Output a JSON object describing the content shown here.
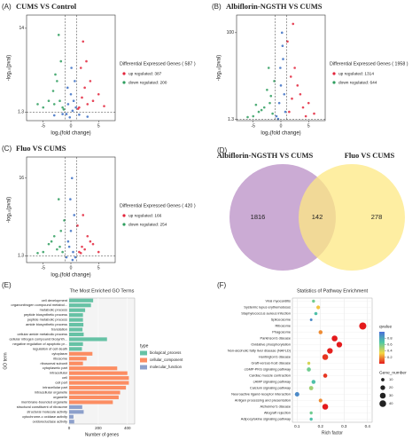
{
  "chart_data": [
    {
      "type": "volcano",
      "panel": "(A)",
      "title": "CUMS VS Control",
      "xlabel": "log₂(fold change)",
      "ylabel": "-log₁₀(pval)",
      "xlim": [
        -8,
        8
      ],
      "xticks": [
        -5,
        0,
        5
      ],
      "ylim": [
        0,
        16
      ],
      "yticks": [
        1.3,
        14
      ],
      "vlines": [
        -1,
        1
      ],
      "hline": 1.3,
      "legend_title": "Differential Expressed Genes ( 587 )",
      "series": [
        {
          "name": "up regulated: 387",
          "color": "#e3243b",
          "x": [
            1.5,
            2,
            2.5,
            3,
            1.8,
            4,
            3.5,
            2.2,
            5,
            1.3,
            2.8,
            6
          ],
          "y": [
            2,
            3.5,
            5,
            2.5,
            8,
            3,
            6,
            12,
            4,
            1.8,
            9,
            2.2
          ]
        },
        {
          "name": "down regulated: 200",
          "color": "#2e9e5e",
          "x": [
            -1.5,
            -2,
            -2.5,
            -3,
            -1.8,
            -4,
            -3.2,
            -2.2,
            -5,
            -1.3,
            -6,
            -2.8
          ],
          "y": [
            2,
            3,
            6,
            2.5,
            9,
            3,
            4.5,
            13,
            2,
            1.7,
            2.5,
            7
          ]
        },
        {
          "color": "#3b6fc4",
          "x": [
            -0.8,
            -0.5,
            0,
            0.3,
            0.7,
            -0.2,
            0.5,
            -3,
            3,
            -1.5,
            1.5,
            0.1,
            -0.6,
            0.9
          ],
          "y": [
            1,
            2.5,
            4,
            1.5,
            6,
            0.5,
            3,
            0.8,
            0.6,
            1,
            0.9,
            8,
            5,
            2
          ]
        }
      ]
    },
    {
      "type": "volcano",
      "panel": "(B)",
      "title": "Albiflorin-NGSTH VS CUMS",
      "xlabel": "log₂(fold change)",
      "ylabel": "-log₁₀(pval)",
      "xlim": [
        -8,
        8
      ],
      "xticks": [
        -5,
        0,
        5
      ],
      "ylim": [
        0,
        120
      ],
      "yticks": [
        1.3,
        100
      ],
      "vlines": [
        -1,
        1
      ],
      "hline": 1.3,
      "legend_title": "Differential Expressed Genes ( 1958 )",
      "series": [
        {
          "name": "up regulated: 1314",
          "color": "#e3243b",
          "x": [
            1.5,
            2,
            3,
            2.5,
            4,
            1.2,
            5,
            3.5,
            2.2,
            6,
            1.8,
            4.5
          ],
          "y": [
            10,
            25,
            40,
            60,
            15,
            90,
            20,
            30,
            110,
            8,
            50,
            5
          ]
        },
        {
          "name": "down regulated: 644",
          "color": "#2e9e5e",
          "x": [
            -1.5,
            -2,
            -3,
            -2.5,
            -4,
            -1.2,
            -5,
            -3.5,
            -6,
            -1.8,
            -2.2,
            -4.5
          ],
          "y": [
            8,
            20,
            15,
            35,
            10,
            45,
            5,
            12,
            4,
            28,
            60,
            18
          ]
        },
        {
          "color": "#3b6fc4",
          "x": [
            -0.8,
            -0.3,
            0,
            0.4,
            0.8,
            -0.5,
            0.2,
            0.6,
            -0.1,
            0.3
          ],
          "y": [
            5,
            20,
            40,
            70,
            10,
            2,
            100,
            30,
            60,
            85
          ]
        }
      ]
    },
    {
      "type": "volcano",
      "panel": "(C)",
      "title": "Fluo VS CUMS",
      "xlabel": "log₂(fold change)",
      "ylabel": "-log₁₀(pval)",
      "xlim": [
        -8,
        8
      ],
      "xticks": [
        -5,
        0,
        5
      ],
      "ylim": [
        0,
        20
      ],
      "yticks": [
        1.3,
        16
      ],
      "vlines": [
        -1,
        1
      ],
      "hline": 1.3,
      "legend_title": "Differential Expressed Genes ( 420 )",
      "series": [
        {
          "name": "up regulated: 166",
          "color": "#e3243b",
          "x": [
            1.5,
            2,
            3,
            2.5,
            4,
            1.2,
            5,
            3.5,
            2.2,
            1.8
          ],
          "y": [
            2,
            3,
            5,
            2.5,
            3.5,
            7,
            2,
            4,
            9,
            1.8
          ]
        },
        {
          "name": "down regulated: 254",
          "color": "#2e9e5e",
          "x": [
            -1.5,
            -2,
            -3,
            -2.5,
            -4,
            -1.2,
            -5,
            -3.5,
            -2.2,
            -6,
            -1.8
          ],
          "y": [
            2,
            3,
            5,
            2.5,
            3.5,
            8,
            2,
            4,
            12,
            1.8,
            6
          ]
        },
        {
          "color": "#3b6fc4",
          "x": [
            -0.8,
            -0.3,
            0,
            0.4,
            0.8,
            -0.5,
            0.2,
            0.6,
            -0.1,
            0.3
          ],
          "y": [
            1,
            3,
            6,
            2,
            1,
            4,
            16,
            9,
            12,
            0.5
          ]
        }
      ]
    },
    {
      "type": "venn",
      "panel": "(D)",
      "sets": [
        {
          "name": "Albiflorin-NGSTH VS CUMS",
          "color": "#b98fc6",
          "value": 1816
        },
        {
          "name": "Fluo VS CUMS",
          "color": "#fde883",
          "value": 278
        }
      ],
      "intersection": 142
    },
    {
      "type": "hbar",
      "panel": "(E)",
      "title": "The Most Enriched GO Terms",
      "xlabel": "Number of genes",
      "ylabel": "GO term",
      "xlim": [
        0,
        450
      ],
      "xticks": [
        0,
        200,
        400
      ],
      "legend_title": "type",
      "series": [
        {
          "name": "biological_process",
          "color": "#66c2a5",
          "categories": [
            "cell development",
            "organonitrogen compound metabol...",
            "metabolic process",
            "peptide biosynthetic process",
            "peptide metabolic process",
            "amide biosynthetic process",
            "translation",
            "cellular amide metabolic process",
            "cellular nitrogen compound biosynth...",
            "negative regulation of apoptotic pr...",
            "regulation of cell death"
          ],
          "values": [
            165,
            150,
            110,
            95,
            95,
            98,
            92,
            100,
            260,
            95,
            88
          ]
        },
        {
          "name": "cellular_component",
          "color": "#fc8d62",
          "categories": [
            "cytoplasm",
            "ribosome",
            "ribosomal subunit",
            "cytoplasmic part",
            "intracellular",
            "cell",
            "cell part",
            "intracellular part",
            "intracellular organelle",
            "organelle",
            "membrane-bounded organelle"
          ],
          "values": [
            160,
            120,
            95,
            330,
            400,
            410,
            410,
            390,
            350,
            340,
            300
          ]
        },
        {
          "name": "molecular_function",
          "color": "#8da0cb",
          "categories": [
            "structural constituent of ribosome",
            "structural molecule activity",
            "cytochrome-c oxidase activity",
            "oxidoreductase activity"
          ],
          "values": [
            90,
            100,
            30,
            35
          ]
        }
      ]
    },
    {
      "type": "bubble",
      "panel": "(F)",
      "title": "Statistics of Pathway Enrichment",
      "xlabel": "Rich factor",
      "xlim": [
        0.08,
        0.42
      ],
      "xticks": [
        0.1,
        0.2,
        0.3,
        0.4
      ],
      "categories": [
        "Viral myocarditis",
        "Systemic lupus erythematosus",
        "Staphylococcus aureus infection",
        "Spliceosome",
        "Ribosome",
        "Phagosome",
        "Parkinson's disease",
        "Oxidative phosphorylation",
        "Non-alcoholic fatty liver disease (NAFLD)",
        "Huntington's disease",
        "Graft-versus-host disease",
        "cGMP-PKG signaling pathway",
        "Cardiac muscle contraction",
        "cAMP signaling pathway",
        "Calcium signaling pathway",
        "Neuroactive ligand-receptor interaction",
        "Antigen processing and presentation",
        "Alzheimer's disease",
        "Allograft rejection",
        "Adipocytokine signaling pathway"
      ],
      "values": [
        0.17,
        0.19,
        0.18,
        0.16,
        0.38,
        0.2,
        0.26,
        0.28,
        0.24,
        0.22,
        0.15,
        0.15,
        0.22,
        0.17,
        0.16,
        0.1,
        0.2,
        0.22,
        0.16,
        0.16
      ],
      "sizes": [
        8,
        12,
        9,
        6,
        45,
        14,
        30,
        28,
        28,
        30,
        8,
        15,
        15,
        14,
        16,
        18,
        12,
        30,
        8,
        8
      ],
      "qvalues": [
        0.6,
        0.3,
        0.7,
        0.9,
        0.0,
        0.2,
        0.0,
        0.0,
        0.01,
        0.05,
        0.4,
        0.6,
        0.05,
        0.7,
        0.5,
        0.9,
        0.2,
        0.0,
        0.6,
        0.7
      ],
      "color_title": "qvalue",
      "qlim": [
        0,
        1
      ],
      "qticks": [
        0.2,
        0.4,
        0.6,
        0.8
      ],
      "colormap": [
        "#e41a1c",
        "#f5d742",
        "#4fc9a4",
        "#4b6fd8"
      ],
      "size_title": "Gene_number",
      "size_ticks": [
        10,
        20,
        30,
        40
      ]
    }
  ]
}
